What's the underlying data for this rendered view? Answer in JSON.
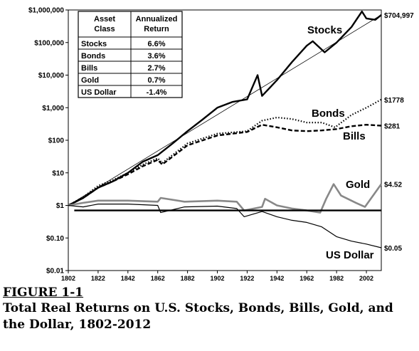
{
  "chart_data": {
    "type": "line",
    "y_scale": "log",
    "ylim": [
      0.01,
      1000000
    ],
    "y_tick_labels": [
      "$1,000,000",
      "$100,000",
      "$10,000",
      "$1,000",
      "$100",
      "$10",
      "$1",
      "$0.10",
      "$0.01"
    ],
    "xlim": [
      1802,
      2012
    ],
    "x_tick_labels": [
      "1802",
      "1822",
      "1842",
      "1862",
      "1882",
      "1902",
      "1922",
      "1942",
      "1962",
      "1982",
      "2002"
    ],
    "grid": false,
    "table": {
      "headers": [
        "Asset\nClass",
        "Annualized\nReturn"
      ],
      "rows": [
        [
          "Stocks",
          "6.6%"
        ],
        [
          "Bonds",
          "3.6%"
        ],
        [
          "Bills",
          "2.7%"
        ],
        [
          "Gold",
          "0.7%"
        ],
        [
          "US Dollar",
          "-1.4%"
        ]
      ]
    },
    "series": [
      {
        "name": "Stocks",
        "end_label": "$704,997",
        "color": "#000000",
        "style": "solid-thick",
        "x": [
          1802,
          1812,
          1822,
          1832,
          1842,
          1852,
          1862,
          1872,
          1882,
          1892,
          1902,
          1912,
          1922,
          1929,
          1932,
          1942,
          1952,
          1962,
          1966,
          1974,
          1982,
          1992,
          1999,
          2002,
          2008,
          2012
        ],
        "y": [
          1,
          1.7,
          3.5,
          5.5,
          10,
          22,
          35,
          80,
          190,
          430,
          1000,
          1500,
          1800,
          10000,
          2300,
          7000,
          25000,
          80000,
          110000,
          50000,
          100000,
          300000,
          900000,
          550000,
          500000,
          704997
        ]
      },
      {
        "name": "Trend",
        "color": "#000000",
        "style": "thin",
        "x": [
          1802,
          2012
        ],
        "y": [
          1,
          704997
        ]
      },
      {
        "name": "Bonds",
        "end_label": "$1778",
        "color": "#000000",
        "style": "dotted",
        "x": [
          1802,
          1812,
          1822,
          1832,
          1842,
          1852,
          1862,
          1865,
          1882,
          1902,
          1922,
          1932,
          1942,
          1952,
          1962,
          1972,
          1981,
          1992,
          2002,
          2012
        ],
        "y": [
          1,
          1.8,
          4,
          6,
          10,
          18,
          28,
          20,
          80,
          160,
          190,
          400,
          500,
          450,
          350,
          350,
          250,
          600,
          1000,
          1778
        ]
      },
      {
        "name": "Bills",
        "end_label": "$281",
        "color": "#000000",
        "style": "dashed",
        "x": [
          1802,
          1812,
          1822,
          1832,
          1842,
          1852,
          1862,
          1865,
          1882,
          1902,
          1922,
          1932,
          1942,
          1952,
          1962,
          1972,
          1982,
          1992,
          2002,
          2012
        ],
        "y": [
          1,
          1.7,
          3.5,
          5.5,
          9,
          16,
          25,
          18,
          70,
          140,
          180,
          300,
          250,
          200,
          190,
          200,
          220,
          270,
          300,
          281
        ]
      },
      {
        "name": "Gold",
        "end_label": "$4.52",
        "color": "#888888",
        "style": "solid-gray",
        "x": [
          1802,
          1812,
          1822,
          1842,
          1862,
          1864,
          1880,
          1902,
          1915,
          1920,
          1932,
          1934,
          1942,
          1952,
          1962,
          1971,
          1975,
          1980,
          1985,
          1995,
          2001,
          2008,
          2012
        ],
        "y": [
          1,
          1.2,
          1.4,
          1.4,
          1.3,
          1.7,
          1.3,
          1.4,
          1.3,
          0.7,
          0.9,
          1.6,
          1.0,
          0.8,
          0.7,
          0.6,
          1.6,
          4.5,
          2.0,
          1.2,
          0.9,
          2.5,
          4.52
        ]
      },
      {
        "name": "US Dollar",
        "end_label": "$0.05",
        "color": "#000000",
        "style": "solid",
        "x": [
          1802,
          1812,
          1822,
          1842,
          1862,
          1864,
          1880,
          1902,
          1915,
          1920,
          1932,
          1942,
          1952,
          1962,
          1972,
          1982,
          1992,
          2002,
          2012
        ],
        "y": [
          1,
          0.9,
          1.1,
          1.1,
          1.0,
          0.6,
          0.9,
          0.95,
          0.8,
          0.45,
          0.65,
          0.45,
          0.35,
          0.3,
          0.22,
          0.11,
          0.08,
          0.065,
          0.05
        ]
      },
      {
        "name": "Reference",
        "color": "#000000",
        "style": "solid-thick",
        "x": [
          1806,
          2012
        ],
        "y": [
          0.7,
          0.7
        ]
      }
    ],
    "series_labels": [
      "Stocks",
      "Bonds",
      "Bills",
      "Gold",
      "US Dollar"
    ]
  },
  "caption": {
    "figure": "FIGURE 1-1",
    "title": "Total Real Returns on U.S. Stocks, Bonds, Bills, Gold, and the Dollar, 1802-2012"
  }
}
